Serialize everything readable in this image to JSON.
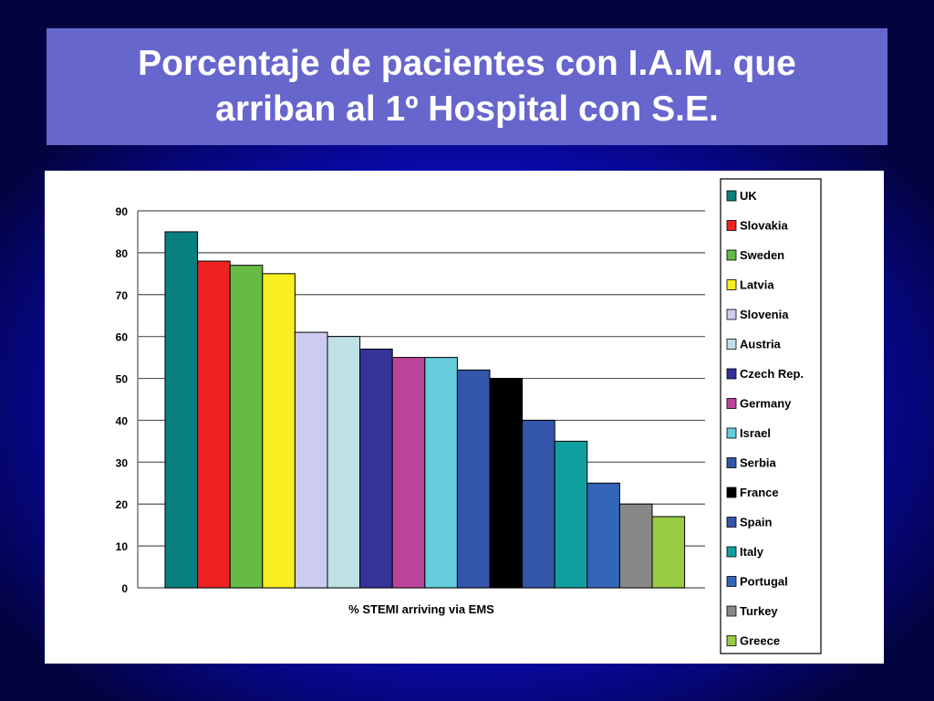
{
  "title": {
    "line1": "Porcentaje de pacientes con I.A.M. que",
    "line2": "arriban al 1º Hospital con S.E."
  },
  "chart_data": {
    "type": "bar",
    "xlabel": "% STEMI arriving via EMS",
    "ylabel": "",
    "ylim": [
      0,
      90
    ],
    "yticks": [
      0,
      10,
      20,
      30,
      40,
      50,
      60,
      70,
      80,
      90
    ],
    "grid": true,
    "legend_position": "right",
    "categories": [
      "UK",
      "Slovakia",
      "Sweden",
      "Latvia",
      "Slovenia",
      "Austria",
      "Czech Rep.",
      "Germany",
      "Israel",
      "Serbia",
      "France",
      "Spain",
      "Italy",
      "Portugal",
      "Turkey",
      "Greece"
    ],
    "values": [
      85,
      78,
      77,
      75,
      61,
      60,
      57,
      55,
      55,
      52,
      50,
      40,
      35,
      25,
      20,
      17
    ],
    "colors": [
      "#0a7f7f",
      "#ee2222",
      "#66bb44",
      "#f8ee22",
      "#ccccee",
      "#bfe1e6",
      "#333399",
      "#bb4499",
      "#66ccdd",
      "#3355aa",
      "#000000",
      "#3355aa",
      "#11a0a0",
      "#3366bb",
      "#888888",
      "#99cc44"
    ]
  }
}
